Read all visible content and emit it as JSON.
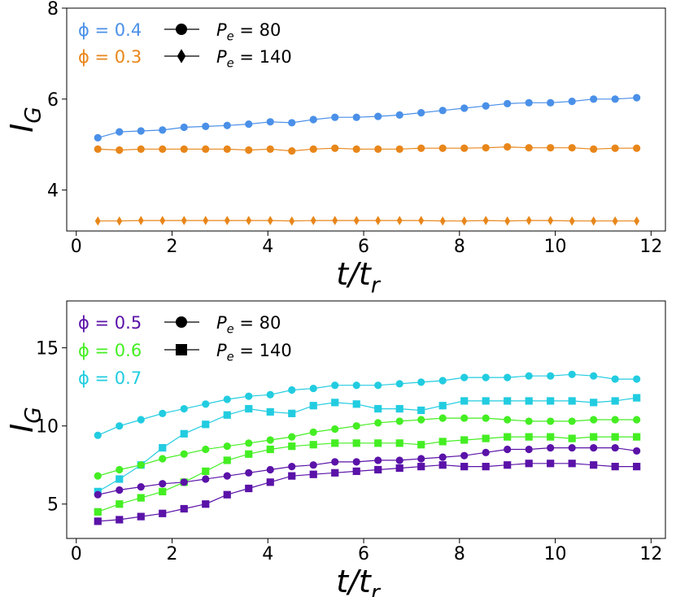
{
  "colors": {
    "phi04": "#4a90e8",
    "phi03": "#e8861a",
    "phi05": "#5a12a8",
    "phi06": "#44ee22",
    "phi07": "#22cce0",
    "axis": "#000000"
  },
  "chart_data": [
    {
      "type": "line",
      "title": "",
      "xlabel": "t/t",
      "xlabel_sub": "r",
      "ylabel": "I",
      "ylabel_sub": "G",
      "xlim": [
        -0.2,
        12.3
      ],
      "ylim": [
        3.1,
        8.0
      ],
      "xticks": [
        0,
        2,
        4,
        6,
        8,
        10,
        12
      ],
      "yticks": [
        4,
        6,
        8
      ],
      "xtick_labels": [
        "0",
        "2",
        "4",
        "6",
        "8",
        "10",
        "12"
      ],
      "ytick_labels": [
        "4",
        "6",
        "8"
      ],
      "legend_position": "top-left",
      "legend_phi": [
        {
          "text": "ϕ = 0.4",
          "color": "#4a90e8"
        },
        {
          "text": "ϕ = 0.3",
          "color": "#e8861a"
        }
      ],
      "legend_pe": [
        {
          "marker": "circle",
          "label": "P",
          "sub": "e",
          "value": " = 80"
        },
        {
          "marker": "diamond",
          "label": "P",
          "sub": "e",
          "value": " = 140"
        }
      ],
      "x": [
        0.45,
        0.9,
        1.35,
        1.8,
        2.25,
        2.7,
        3.15,
        3.6,
        4.05,
        4.5,
        4.95,
        5.4,
        5.85,
        6.3,
        6.75,
        7.2,
        7.65,
        8.1,
        8.55,
        9.0,
        9.45,
        9.9,
        10.35,
        10.8,
        11.25,
        11.7
      ],
      "series": [
        {
          "name": "ϕ = 0.4, Pe = 80",
          "color": "#4a90e8",
          "marker": "circle",
          "values": [
            5.15,
            5.28,
            5.3,
            5.32,
            5.38,
            5.4,
            5.42,
            5.45,
            5.5,
            5.48,
            5.55,
            5.6,
            5.6,
            5.62,
            5.65,
            5.7,
            5.75,
            5.8,
            5.85,
            5.9,
            5.92,
            5.92,
            5.95,
            6.0,
            6.0,
            6.03
          ]
        },
        {
          "name": "ϕ = 0.3, Pe = 80",
          "color": "#e8861a",
          "marker": "circle",
          "values": [
            4.9,
            4.88,
            4.9,
            4.9,
            4.9,
            4.9,
            4.9,
            4.88,
            4.9,
            4.86,
            4.9,
            4.92,
            4.9,
            4.9,
            4.9,
            4.92,
            4.92,
            4.92,
            4.93,
            4.95,
            4.93,
            4.93,
            4.93,
            4.9,
            4.92,
            4.92
          ]
        },
        {
          "name": "ϕ = 0.3, Pe = 140",
          "color": "#e8861a",
          "marker": "diamond",
          "values": [
            3.32,
            3.32,
            3.33,
            3.33,
            3.33,
            3.33,
            3.33,
            3.33,
            3.33,
            3.32,
            3.33,
            3.33,
            3.33,
            3.33,
            3.33,
            3.33,
            3.32,
            3.32,
            3.33,
            3.32,
            3.33,
            3.33,
            3.32,
            3.32,
            3.32,
            3.32
          ]
        }
      ]
    },
    {
      "type": "line",
      "title": "",
      "xlabel": "t/t",
      "xlabel_sub": "r",
      "ylabel": "I",
      "ylabel_sub": "G",
      "xlim": [
        -0.2,
        12.3
      ],
      "ylim": [
        2.8,
        18.0
      ],
      "xticks": [
        0,
        2,
        4,
        6,
        8,
        10,
        12
      ],
      "yticks": [
        5,
        10,
        15
      ],
      "xtick_labels": [
        "0",
        "2",
        "4",
        "6",
        "8",
        "10",
        "12"
      ],
      "ytick_labels": [
        "5",
        "10",
        "15"
      ],
      "legend_position": "top-left",
      "legend_phi": [
        {
          "text": "ϕ = 0.5",
          "color": "#5a12a8"
        },
        {
          "text": "ϕ = 0.6",
          "color": "#44ee22"
        },
        {
          "text": "ϕ = 0.7",
          "color": "#22cce0"
        }
      ],
      "legend_pe": [
        {
          "marker": "circle",
          "label": "P",
          "sub": "e",
          "value": " = 80"
        },
        {
          "marker": "square",
          "label": "P",
          "sub": "e",
          "value": " = 140"
        }
      ],
      "x": [
        0.45,
        0.9,
        1.35,
        1.8,
        2.25,
        2.7,
        3.15,
        3.6,
        4.05,
        4.5,
        4.95,
        5.4,
        5.85,
        6.3,
        6.75,
        7.2,
        7.65,
        8.1,
        8.55,
        9.0,
        9.45,
        9.9,
        10.35,
        10.8,
        11.25,
        11.7
      ],
      "series": [
        {
          "name": "ϕ = 0.7, Pe = 80",
          "color": "#22cce0",
          "marker": "circle",
          "values": [
            9.4,
            10.0,
            10.4,
            10.8,
            11.1,
            11.4,
            11.7,
            11.9,
            12.0,
            12.3,
            12.4,
            12.6,
            12.6,
            12.6,
            12.7,
            12.8,
            12.9,
            13.1,
            13.1,
            13.1,
            13.2,
            13.2,
            13.3,
            13.2,
            13.0,
            13.0
          ]
        },
        {
          "name": "ϕ = 0.7, Pe = 140",
          "color": "#22cce0",
          "marker": "square",
          "values": [
            5.8,
            6.6,
            7.5,
            8.6,
            9.5,
            10.1,
            10.7,
            11.1,
            10.9,
            10.8,
            11.3,
            11.5,
            11.4,
            11.1,
            11.1,
            11.0,
            11.3,
            11.6,
            11.6,
            11.6,
            11.6,
            11.6,
            11.6,
            11.5,
            11.6,
            11.8
          ]
        },
        {
          "name": "ϕ = 0.6, Pe = 80",
          "color": "#44ee22",
          "marker": "circle",
          "values": [
            6.8,
            7.2,
            7.5,
            7.9,
            8.2,
            8.5,
            8.7,
            8.9,
            9.1,
            9.3,
            9.6,
            9.8,
            10.0,
            10.2,
            10.3,
            10.4,
            10.5,
            10.5,
            10.5,
            10.4,
            10.3,
            10.3,
            10.3,
            10.4,
            10.4,
            10.4
          ]
        },
        {
          "name": "ϕ = 0.6, Pe = 140",
          "color": "#44ee22",
          "marker": "square",
          "values": [
            4.5,
            5.0,
            5.4,
            5.8,
            6.4,
            7.1,
            7.8,
            8.2,
            8.5,
            8.7,
            8.8,
            8.9,
            8.9,
            8.9,
            8.9,
            8.8,
            9.0,
            9.1,
            9.2,
            9.3,
            9.3,
            9.3,
            9.2,
            9.3,
            9.3,
            9.3
          ]
        },
        {
          "name": "ϕ = 0.5, Pe = 80",
          "color": "#5a12a8",
          "marker": "circle",
          "values": [
            5.6,
            5.9,
            6.1,
            6.3,
            6.4,
            6.6,
            6.8,
            7.0,
            7.2,
            7.4,
            7.5,
            7.7,
            7.7,
            7.8,
            7.8,
            7.9,
            8.0,
            8.1,
            8.3,
            8.5,
            8.5,
            8.6,
            8.6,
            8.6,
            8.6,
            8.4
          ]
        },
        {
          "name": "ϕ = 0.5, Pe = 140",
          "color": "#5a12a8",
          "marker": "square",
          "values": [
            3.9,
            4.0,
            4.2,
            4.4,
            4.7,
            5.0,
            5.6,
            6.0,
            6.4,
            6.8,
            6.9,
            7.0,
            7.1,
            7.2,
            7.3,
            7.4,
            7.5,
            7.4,
            7.4,
            7.5,
            7.6,
            7.6,
            7.6,
            7.5,
            7.4,
            7.4
          ]
        }
      ]
    }
  ]
}
